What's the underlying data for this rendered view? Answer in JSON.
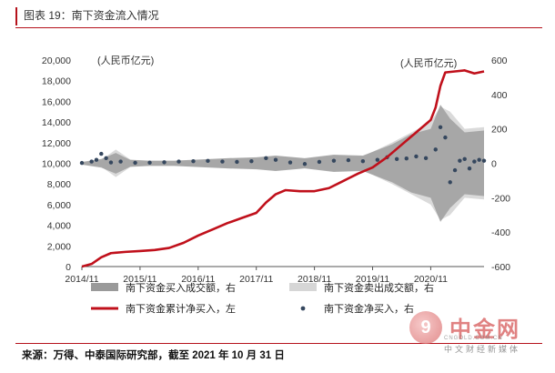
{
  "figure": {
    "title": "图表 19：南下资金流入情况",
    "source": "来源：万得、中泰国际研究部，截至 2021 年 10 月 31 日"
  },
  "watermark": {
    "name": "中金网",
    "glyph": "9",
    "url": "CNGOLD.COM.CN",
    "subtitle": "中文财经新媒体"
  },
  "colors": {
    "accent": "#b5121b",
    "cumulative_line": "#c0101b",
    "buy_volume": "#9a9a9a",
    "sell_volume": "#d6d6d6",
    "net_buy_dots": "#35475e"
  },
  "chart_data": {
    "type": "line",
    "x_range": [
      "2014-11",
      "2021-10"
    ],
    "x_tick_labels": [
      "2014/11",
      "2015/11",
      "2016/11",
      "2017/11",
      "2018/11",
      "2019/11",
      "2020/11"
    ],
    "left_axis": {
      "unit": "(人民币亿元)",
      "range": [
        0,
        20000
      ],
      "ticks": [
        "0",
        "2,000",
        "4,000",
        "6,000",
        "8,000",
        "10,000",
        "12,000",
        "14,000",
        "16,000",
        "18,000",
        "20,000"
      ]
    },
    "right_axis": {
      "unit": "(人民币亿元)",
      "range": [
        -600,
        600
      ],
      "ticks": [
        "-600",
        "-400",
        "-200",
        "0",
        "200",
        "400",
        "600"
      ]
    },
    "legend": {
      "position": "bottom",
      "items": [
        {
          "key": "buy",
          "label": "南下资金买入成交额，右",
          "style": "band"
        },
        {
          "key": "sell",
          "label": "南下资金卖出成交额，右",
          "style": "band-light"
        },
        {
          "key": "cum",
          "label": "南下资金累计净买入，左",
          "style": "line"
        },
        {
          "key": "net",
          "label": "南下资金净买入，右",
          "style": "dot"
        }
      ]
    },
    "series": [
      {
        "key": "cum",
        "name": "南下资金累计净买入",
        "axis": "left",
        "points": [
          [
            "2014-11",
            0
          ],
          [
            "2015-01",
            250
          ],
          [
            "2015-03",
            900
          ],
          [
            "2015-05",
            1300
          ],
          [
            "2015-08",
            1420
          ],
          [
            "2015-11",
            1500
          ],
          [
            "2016-02",
            1600
          ],
          [
            "2016-05",
            1800
          ],
          [
            "2016-08",
            2300
          ],
          [
            "2016-11",
            3000
          ],
          [
            "2017-02",
            3600
          ],
          [
            "2017-05",
            4200
          ],
          [
            "2017-08",
            4700
          ],
          [
            "2017-11",
            5200
          ],
          [
            "2018-01",
            6200
          ],
          [
            "2018-03",
            7000
          ],
          [
            "2018-05",
            7400
          ],
          [
            "2018-08",
            7300
          ],
          [
            "2018-11",
            7300
          ],
          [
            "2019-02",
            7600
          ],
          [
            "2019-05",
            8300
          ],
          [
            "2019-08",
            9000
          ],
          [
            "2019-11",
            9600
          ],
          [
            "2020-02",
            10600
          ],
          [
            "2020-05",
            11800
          ],
          [
            "2020-08",
            13000
          ],
          [
            "2020-11",
            14200
          ],
          [
            "2020-12",
            15400
          ],
          [
            "2021-01",
            17500
          ],
          [
            "2021-02",
            18800
          ],
          [
            "2021-04",
            18900
          ],
          [
            "2021-06",
            19000
          ],
          [
            "2021-08",
            18700
          ],
          [
            "2021-10",
            18900
          ]
        ]
      },
      {
        "key": "buy",
        "name": "南下资金买入成交额",
        "axis": "right",
        "points": [
          [
            "2014-11",
            8
          ],
          [
            "2015-03",
            25
          ],
          [
            "2015-06",
            60
          ],
          [
            "2015-09",
            20
          ],
          [
            "2016-01",
            15
          ],
          [
            "2016-06",
            15
          ],
          [
            "2016-11",
            22
          ],
          [
            "2017-05",
            30
          ],
          [
            "2017-11",
            35
          ],
          [
            "2018-03",
            45
          ],
          [
            "2018-09",
            30
          ],
          [
            "2019-03",
            50
          ],
          [
            "2019-09",
            45
          ],
          [
            "2020-03",
            110
          ],
          [
            "2020-07",
            170
          ],
          [
            "2020-11",
            200
          ],
          [
            "2021-01",
            340
          ],
          [
            "2021-03",
            260
          ],
          [
            "2021-06",
            180
          ],
          [
            "2021-10",
            190
          ]
        ]
      },
      {
        "key": "sell",
        "name": "南下资金卖出成交额",
        "axis": "right",
        "points": [
          [
            "2014-11",
            6
          ],
          [
            "2015-03",
            20
          ],
          [
            "2015-06",
            80
          ],
          [
            "2015-09",
            22
          ],
          [
            "2016-01",
            14
          ],
          [
            "2016-06",
            14
          ],
          [
            "2016-11",
            20
          ],
          [
            "2017-05",
            28
          ],
          [
            "2017-11",
            32
          ],
          [
            "2018-03",
            42
          ],
          [
            "2018-09",
            28
          ],
          [
            "2019-03",
            45
          ],
          [
            "2019-09",
            40
          ],
          [
            "2020-03",
            120
          ],
          [
            "2020-07",
            180
          ],
          [
            "2020-11",
            240
          ],
          [
            "2021-01",
            330
          ],
          [
            "2021-03",
            300
          ],
          [
            "2021-06",
            200
          ],
          [
            "2021-10",
            210
          ]
        ]
      },
      {
        "key": "net",
        "name": "南下资金净买入",
        "axis": "right",
        "points": [
          [
            "2014-11",
            2
          ],
          [
            "2015-01",
            10
          ],
          [
            "2015-02",
            20
          ],
          [
            "2015-03",
            55
          ],
          [
            "2015-04",
            30
          ],
          [
            "2015-05",
            5
          ],
          [
            "2015-07",
            10
          ],
          [
            "2015-10",
            3
          ],
          [
            "2016-01",
            4
          ],
          [
            "2016-04",
            6
          ],
          [
            "2016-07",
            10
          ],
          [
            "2016-10",
            12
          ],
          [
            "2017-01",
            14
          ],
          [
            "2017-04",
            10
          ],
          [
            "2017-07",
            8
          ],
          [
            "2017-10",
            12
          ],
          [
            "2018-01",
            30
          ],
          [
            "2018-03",
            20
          ],
          [
            "2018-06",
            5
          ],
          [
            "2018-09",
            -4
          ],
          [
            "2018-12",
            8
          ],
          [
            "2019-03",
            15
          ],
          [
            "2019-06",
            18
          ],
          [
            "2019-09",
            12
          ],
          [
            "2019-12",
            20
          ],
          [
            "2020-02",
            35
          ],
          [
            "2020-04",
            25
          ],
          [
            "2020-06",
            28
          ],
          [
            "2020-08",
            40
          ],
          [
            "2020-10",
            30
          ],
          [
            "2020-12",
            80
          ],
          [
            "2021-01",
            210
          ],
          [
            "2021-02",
            150
          ],
          [
            "2021-03",
            -110
          ],
          [
            "2021-04",
            -40
          ],
          [
            "2021-05",
            15
          ],
          [
            "2021-06",
            25
          ],
          [
            "2021-07",
            -30
          ],
          [
            "2021-08",
            10
          ],
          [
            "2021-09",
            20
          ],
          [
            "2021-10",
            15
          ]
        ]
      }
    ]
  }
}
